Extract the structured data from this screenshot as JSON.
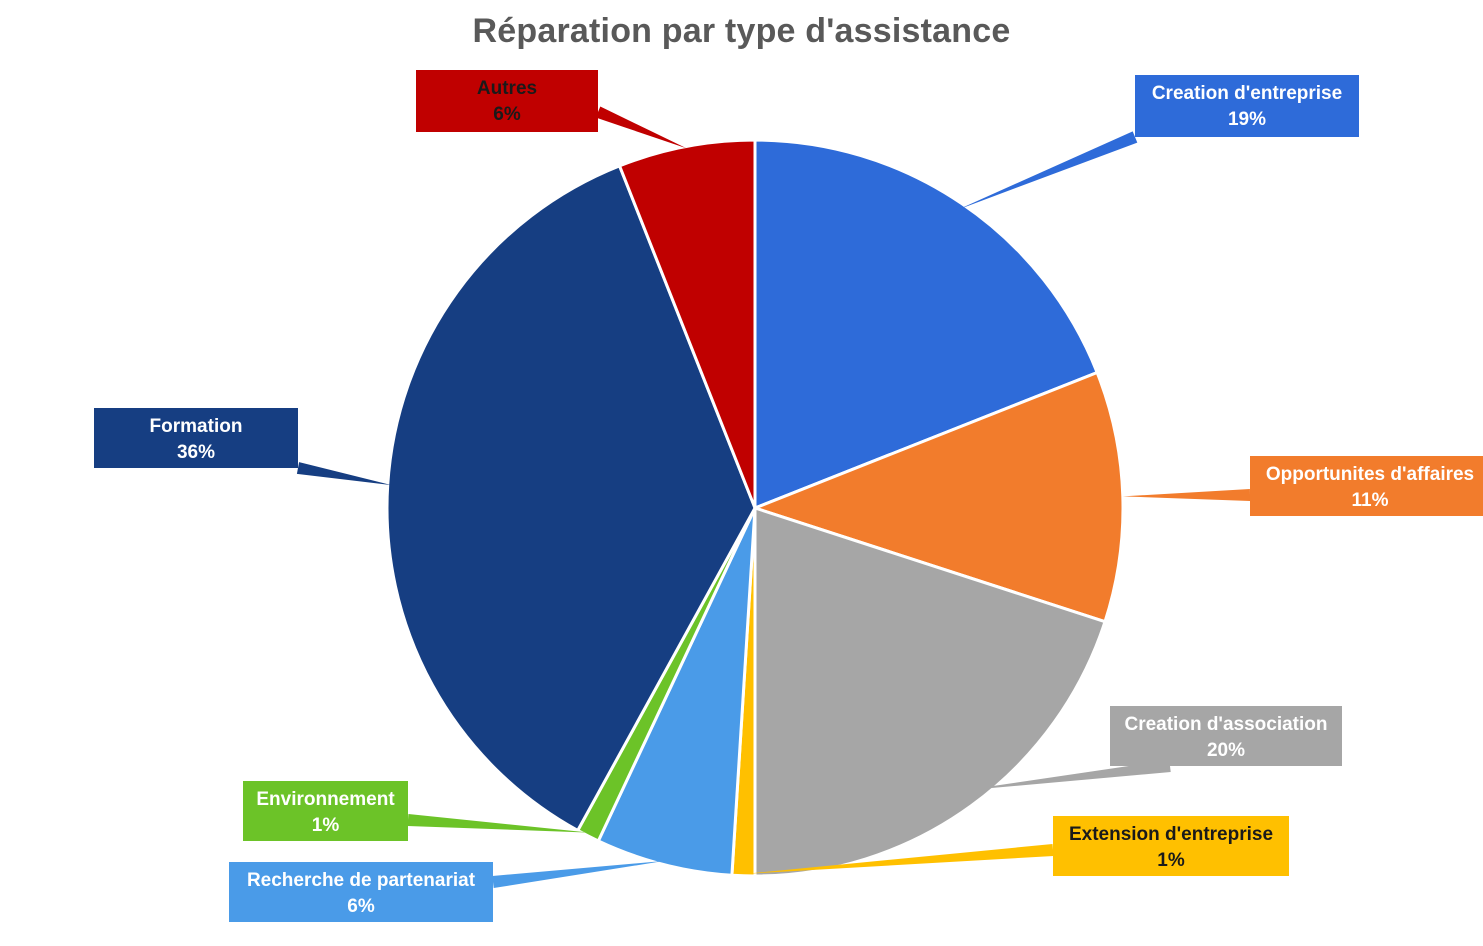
{
  "chart_data": {
    "type": "pie",
    "title": "Réparation par type d'assistance",
    "label_format": "category_and_percent",
    "start_angle": "12 o'clock",
    "direction": "clockwise",
    "slices": [
      {
        "label": "Creation d'entreprise",
        "value": 19,
        "value_label": "19%",
        "color": "#2e6bd9",
        "text_color": "#ffffff"
      },
      {
        "label": "Opportunites d'affaires",
        "value": 11,
        "value_label": "11%",
        "color": "#f27c2c",
        "text_color": "#ffffff"
      },
      {
        "label": "Creation d'association",
        "value": 20,
        "value_label": "20%",
        "color": "#a6a6a6",
        "text_color": "#ffffff"
      },
      {
        "label": "Extension d'entreprise",
        "value": 1,
        "value_label": "1%",
        "color": "#ffc000",
        "text_color": "#1a1a1a"
      },
      {
        "label": "Recherche de partenariat",
        "value": 6,
        "value_label": "6%",
        "color": "#4a9be8",
        "text_color": "#ffffff"
      },
      {
        "label": "Environnement",
        "value": 1,
        "value_label": "1%",
        "color": "#6cc328",
        "text_color": "#ffffff"
      },
      {
        "label": "Formation",
        "value": 36,
        "value_label": "36%",
        "color": "#163e82",
        "text_color": "#ffffff"
      },
      {
        "label": "Autres",
        "value": 6,
        "value_label": "6%",
        "color": "#c00000",
        "text_color": "#1a1a1a"
      }
    ]
  }
}
